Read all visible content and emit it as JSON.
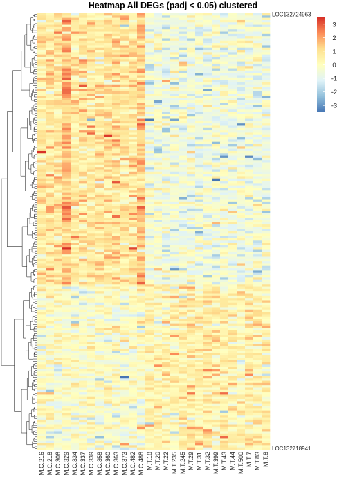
{
  "chart_data": {
    "type": "heatmap",
    "title": "Heatmap All DEGs (padj < 0.05) clustered",
    "columns": [
      "M.C.216",
      "M.C.218",
      "M.C.306",
      "M.C.329",
      "M.C.334",
      "M.C.337",
      "M.C.339",
      "M.C.358",
      "M.C.360",
      "M.C.363",
      "M.C.373",
      "M.C.482",
      "M.C.488",
      "M.T.18",
      "M.T.20",
      "M.T.22",
      "M.T.235",
      "M.T.245",
      "M.T.29",
      "M.T.31",
      "M.T.32",
      "M.T.399",
      "M.T.43",
      "M.T.44",
      "M.T.500",
      "M.T.7",
      "M.T.83",
      "M.T.8"
    ],
    "row_labels_visible": [
      "LOC132724963",
      "LOC132718941"
    ],
    "n_rows": 190,
    "legend": {
      "ticks": [
        3,
        2,
        1,
        0,
        -1,
        -2,
        -3
      ],
      "range": [
        -3.5,
        3.5
      ],
      "colors": [
        "#4575b4",
        "#91bfdb",
        "#e0f3f8",
        "#ffffbf",
        "#fee090",
        "#fc8d59",
        "#d73027"
      ]
    },
    "clustering": {
      "rows": true,
      "columns": false
    }
  }
}
